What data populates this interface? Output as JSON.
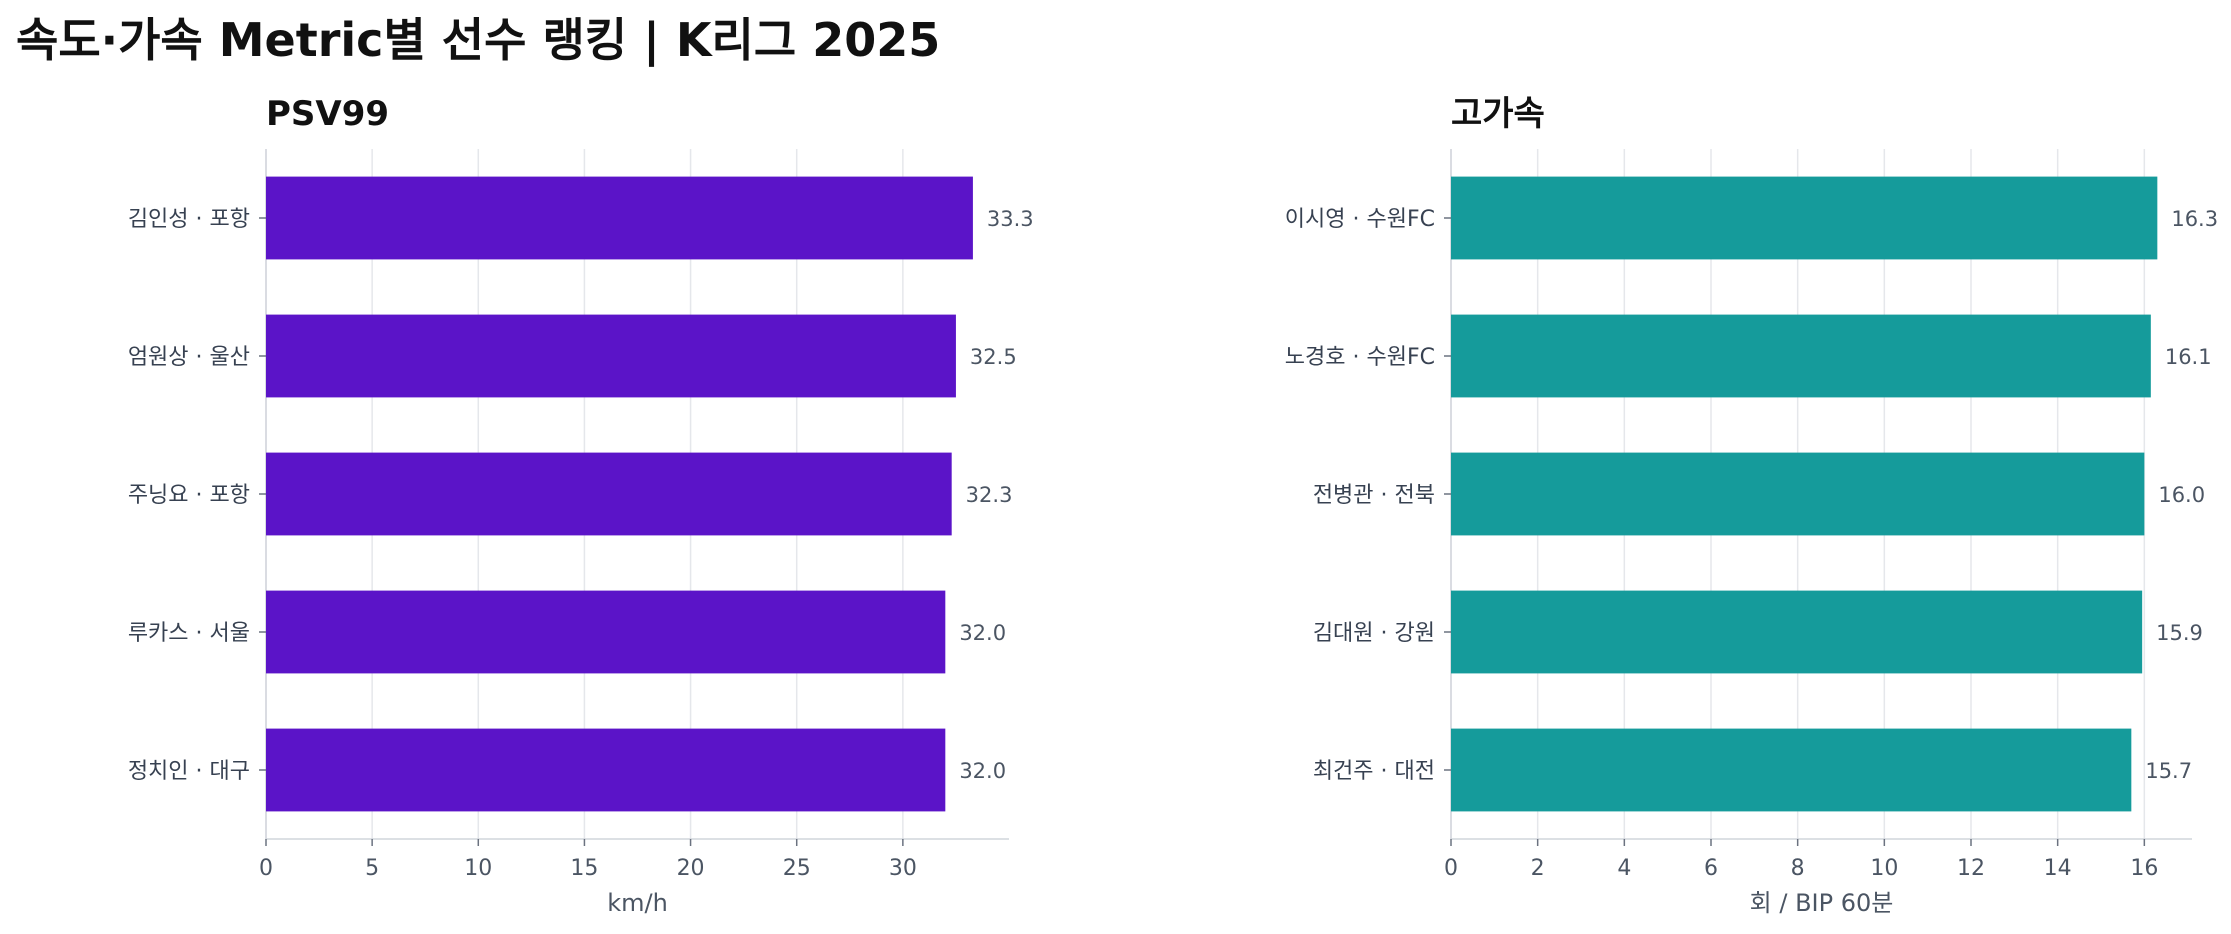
{
  "title": "속도·가속 Metric별 선수 랭킹 | K리그 2025",
  "colors": {
    "panel1": "#5b14c8",
    "panel2": "#159b9b",
    "grid": "#e5e7eb",
    "axis": "#d1d5db"
  },
  "chart_data": [
    {
      "type": "bar",
      "orientation": "horizontal",
      "title": "PSV99",
      "xlabel": "km/h",
      "ylabel": "",
      "categories": [
        "김인성 · 포항",
        "엄원상 · 울산",
        "주닝요 · 포항",
        "루카스 · 서울",
        "정치인 · 대구"
      ],
      "values": [
        33.3,
        32.5,
        32.3,
        32.0,
        32.0
      ],
      "value_labels": [
        "33.3",
        "32.5",
        "32.3",
        "32.0",
        "32.0"
      ],
      "xlim": [
        0,
        35
      ],
      "xticks": [
        0,
        5,
        10,
        15,
        20,
        25,
        30
      ],
      "xtick_labels": [
        "0",
        "5",
        "10",
        "15",
        "20",
        "25",
        "30"
      ],
      "grid": true
    },
    {
      "type": "bar",
      "orientation": "horizontal",
      "title": "고가속",
      "xlabel": "회 / BIP 60분",
      "ylabel": "",
      "categories": [
        "이시영 · 수원FC",
        "노경호 · 수원FC",
        "전병관 · 전북",
        "김대원 · 강원",
        "최건주 · 대전"
      ],
      "values": [
        16.3,
        16.15,
        16.0,
        15.95,
        15.7
      ],
      "value_labels": [
        "16.3",
        "16.1",
        "16.0",
        "15.9",
        "15.7"
      ],
      "xlim": [
        0,
        17.1
      ],
      "xticks": [
        0,
        2,
        4,
        6,
        8,
        10,
        12,
        14,
        16
      ],
      "xtick_labels": [
        "0",
        "2",
        "4",
        "6",
        "8",
        "10",
        "12",
        "14",
        "16"
      ],
      "grid": true
    }
  ]
}
